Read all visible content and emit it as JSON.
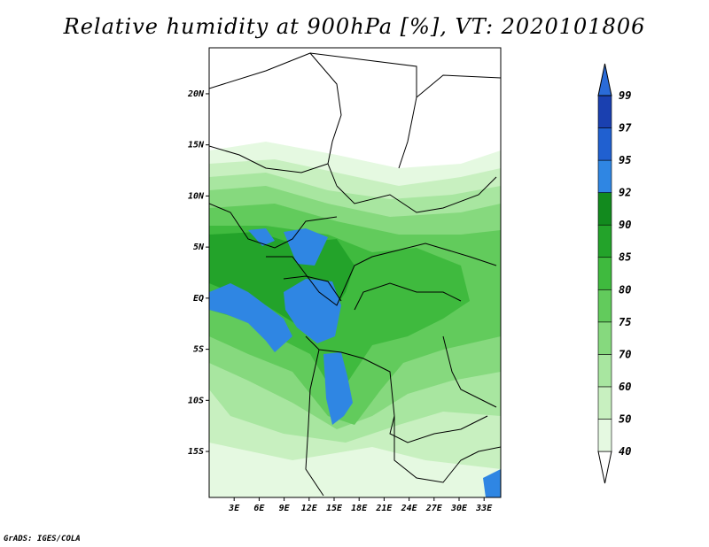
{
  "title": "Relative humidity at 900hPa [%], VT: 2020101806",
  "credit": "GrADS: IGES/COLA",
  "map": {
    "lat_labels": [
      {
        "label": "20N",
        "lat": 20
      },
      {
        "label": "15N",
        "lat": 15
      },
      {
        "label": "10N",
        "lat": 10
      },
      {
        "label": "5N",
        "lat": 5
      },
      {
        "label": "EQ",
        "lat": 0
      },
      {
        "label": "5S",
        "lat": -5
      },
      {
        "label": "10S",
        "lat": -10
      },
      {
        "label": "15S",
        "lat": -15
      }
    ],
    "lon_labels": [
      {
        "label": "3E",
        "lon": 3
      },
      {
        "label": "6E",
        "lon": 6
      },
      {
        "label": "9E",
        "lon": 9
      },
      {
        "label": "12E",
        "lon": 12
      },
      {
        "label": "15E",
        "lon": 15
      },
      {
        "label": "18E",
        "lon": 18
      },
      {
        "label": "21E",
        "lon": 21
      },
      {
        "label": "24E",
        "lon": 24
      },
      {
        "label": "27E",
        "lon": 27
      },
      {
        "label": "30E",
        "lon": 30
      },
      {
        "label": "33E",
        "lon": 33
      }
    ],
    "lon_range": [
      0,
      35
    ],
    "lat_range": [
      -19.5,
      24.5
    ]
  },
  "colorbar": {
    "levels": [
      "40",
      "50",
      "60",
      "70",
      "75",
      "80",
      "85",
      "90",
      "92",
      "95",
      "97",
      "99"
    ],
    "colors": [
      "#ffffff",
      "#e5f9e1",
      "#c8f0c0",
      "#a8e6a0",
      "#86d97e",
      "#62cb5c",
      "#3fba3e",
      "#23a32a",
      "#128a1e",
      "#2f86e3",
      "#2060d0",
      "#1a40b0",
      "#2a6bd8"
    ]
  }
}
